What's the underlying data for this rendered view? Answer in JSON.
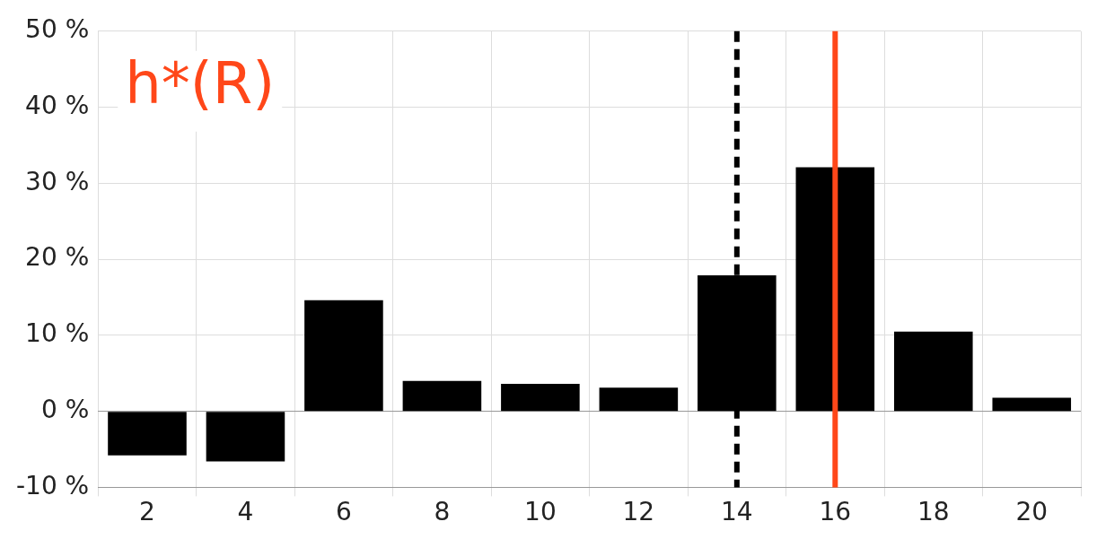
{
  "chart_data": {
    "type": "bar",
    "categories": [
      "2",
      "4",
      "6",
      "8",
      "10",
      "12",
      "14",
      "16",
      "18",
      "20"
    ],
    "values": [
      -5.8,
      -6.6,
      14.6,
      4.0,
      3.6,
      3.1,
      17.9,
      32.1,
      10.5,
      1.8
    ],
    "color": "#000000",
    "ylim": [
      -10,
      50
    ],
    "yticks": [
      {
        "value": -10,
        "label": "-10 %"
      },
      {
        "value": 0,
        "label": "0 %"
      },
      {
        "value": 10,
        "label": "10 %"
      },
      {
        "value": 20,
        "label": "20 %"
      },
      {
        "value": 30,
        "label": "30 %"
      },
      {
        "value": 40,
        "label": "40 %"
      },
      {
        "value": 50,
        "label": "50 %"
      }
    ],
    "grid": true,
    "annotations": [
      "h*(R)"
    ],
    "ref_lines": [
      {
        "axis": "x",
        "value": "14",
        "color": "#000000",
        "line_style": "dashed"
      },
      {
        "axis": "x",
        "value": "16",
        "color": "#ff4719",
        "line_style": "solid"
      }
    ]
  }
}
